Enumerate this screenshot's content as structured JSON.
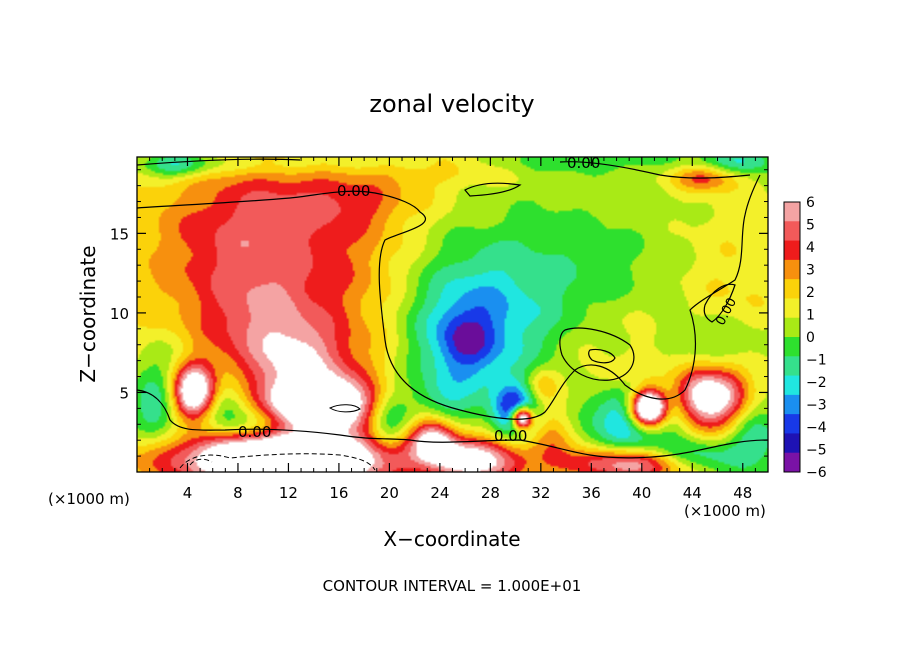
{
  "chart_data": {
    "type": "heatmap",
    "title": "zonal velocity",
    "xlabel": "X−coordinate",
    "ylabel": "Z−coordinate",
    "x_unit_left": "(×1000 m)",
    "x_unit_right": "(×1000 m)",
    "xlim": [
      0,
      50
    ],
    "ylim": [
      0,
      19.8
    ],
    "xticks": [
      4,
      8,
      12,
      16,
      20,
      24,
      28,
      32,
      36,
      40,
      44,
      48
    ],
    "yticks": [
      5,
      10,
      15
    ],
    "colorbar": {
      "levels": [
        6,
        5,
        4,
        3,
        2,
        1,
        0,
        -1,
        -2,
        -3,
        -4,
        -5,
        -6
      ],
      "labels": [
        "6",
        "5",
        "4",
        "3",
        "2",
        "1",
        "0",
        "−1",
        "−2",
        "−3",
        "−4",
        "−5",
        "−6"
      ],
      "colors": [
        "#f4a3a3",
        "#f25a5a",
        "#ee1c1c",
        "#f7900e",
        "#fbd20a",
        "#f3f02a",
        "#a9ea16",
        "#2ee02e",
        "#35e08c",
        "#20e6e0",
        "#1a8ff0",
        "#1839e8",
        "#1e12b4",
        "#7a12a6"
      ]
    },
    "contour_labels": [
      "0.00",
      "0.00",
      "0.00",
      "0.00",
      "0.00"
    ],
    "footer": "CONTOUR INTERVAL = 1.000E+01",
    "blobs": [
      {
        "x": 0,
        "z": 10,
        "sx": 30,
        "sz": 30,
        "v": 0.6
      },
      {
        "x": 10,
        "z": 16,
        "sx": 5,
        "sz": 3,
        "v": 2.2
      },
      {
        "x": 6,
        "z": 13,
        "sx": 5,
        "sz": 3.5,
        "v": 1.6
      },
      {
        "x": 12,
        "z": 12,
        "sx": 4,
        "sz": 5,
        "v": 1.3
      },
      {
        "x": 10,
        "z": 9,
        "sx": 3.5,
        "sz": 2.5,
        "v": 2.6
      },
      {
        "x": 14,
        "z": 6,
        "sx": 3.5,
        "sz": 2.2,
        "v": 2.6
      },
      {
        "x": 12.5,
        "z": 7,
        "sx": 2,
        "sz": 1.5,
        "v": 1.5
      },
      {
        "x": 18,
        "z": 13,
        "sx": 3,
        "sz": 5,
        "v": 1.2
      },
      {
        "x": 17,
        "z": 17,
        "sx": 4,
        "sz": 1,
        "v": 1.5
      },
      {
        "x": 4.5,
        "z": 5,
        "sx": 1.2,
        "sz": 1.2,
        "v": 9
      },
      {
        "x": 1.5,
        "z": 4,
        "sx": 1.5,
        "sz": 1.5,
        "v": -3.5
      },
      {
        "x": 2,
        "z": 7,
        "sx": 2,
        "sz": 1.3,
        "v": -1.5
      },
      {
        "x": 7,
        "z": 4.5,
        "sx": 1.5,
        "sz": 1.2,
        "v": -2.5
      },
      {
        "x": 14.5,
        "z": 4.2,
        "sx": 2.8,
        "sz": 1.1,
        "v": 9
      },
      {
        "x": 9,
        "z": 3,
        "sx": 3,
        "sz": 0.8,
        "v": -2.2
      },
      {
        "x": 12,
        "z": 0.8,
        "sx": 6,
        "sz": 1.1,
        "v": 12
      },
      {
        "x": 20,
        "z": 3,
        "sx": 1.2,
        "sz": 1.5,
        "v": -3
      },
      {
        "x": 23.5,
        "z": 2.2,
        "sx": 1.3,
        "sz": 1,
        "v": 7
      },
      {
        "x": 27,
        "z": 0.8,
        "sx": 2.5,
        "sz": 1,
        "v": 7
      },
      {
        "x": 24,
        "z": 3.8,
        "sx": 1.8,
        "sz": 1.5,
        "v": -2
      },
      {
        "x": 26,
        "z": 8.5,
        "sx": 3.5,
        "sz": 3.2,
        "v": -4
      },
      {
        "x": 26,
        "z": 8.2,
        "sx": 1.5,
        "sz": 1.3,
        "v": -2
      },
      {
        "x": 30,
        "z": 11,
        "sx": 5,
        "sz": 4,
        "v": -1.6
      },
      {
        "x": 36,
        "z": 13,
        "sx": 7,
        "sz": 4,
        "v": -1.2
      },
      {
        "x": 30,
        "z": 3.8,
        "sx": 1.2,
        "sz": 1.2,
        "v": -6
      },
      {
        "x": 30.5,
        "z": 3.4,
        "sx": 0.6,
        "sz": 0.5,
        "v": 12
      },
      {
        "x": 32,
        "z": 5.5,
        "sx": 1,
        "sz": 0.8,
        "v": 2.5
      },
      {
        "x": 33,
        "z": 2,
        "sx": 1.2,
        "sz": 1.5,
        "v": 2.5
      },
      {
        "x": 39,
        "z": 3.5,
        "sx": 2.5,
        "sz": 1.6,
        "v": -5
      },
      {
        "x": 40.5,
        "z": 4,
        "sx": 1,
        "sz": 0.8,
        "v": 13
      },
      {
        "x": 38,
        "z": 7,
        "sx": 2.5,
        "sz": 2,
        "v": 2
      },
      {
        "x": 38,
        "z": 7.8,
        "sx": 1,
        "sz": 0.8,
        "v": -2
      },
      {
        "x": 45,
        "z": 4.7,
        "sx": 2.5,
        "sz": 1.4,
        "v": 8.5
      },
      {
        "x": 42.5,
        "z": 4.5,
        "sx": 1.2,
        "sz": 1.5,
        "v": -3
      },
      {
        "x": 49,
        "z": 2.5,
        "sx": 1.5,
        "sz": 2,
        "v": -3
      },
      {
        "x": 44.5,
        "z": 1,
        "sx": 2.5,
        "sz": 0.8,
        "v": -3.5
      },
      {
        "x": 39,
        "z": 0.5,
        "sx": 3.5,
        "sz": 0.7,
        "v": 6
      },
      {
        "x": 46,
        "z": 8,
        "sx": 2.5,
        "sz": 1.2,
        "v": -1.8
      },
      {
        "x": 47,
        "z": 12,
        "sx": 3,
        "sz": 3,
        "v": 1.2
      },
      {
        "x": 3,
        "z": 19.3,
        "sx": 2,
        "sz": 0.6,
        "v": -3.5
      },
      {
        "x": 12,
        "z": 19.4,
        "sx": 8,
        "sz": 0.5,
        "v": -1.5
      },
      {
        "x": 24,
        "z": 19.2,
        "sx": 4,
        "sz": 0.8,
        "v": 1.5
      },
      {
        "x": 36,
        "z": 19.6,
        "sx": 8,
        "sz": 0.6,
        "v": -1.5
      },
      {
        "x": 45,
        "z": 18.5,
        "sx": 1.8,
        "sz": 0.6,
        "v": 3.5
      },
      {
        "x": 48,
        "z": 19.5,
        "sx": 2,
        "sz": 0.6,
        "v": -3
      }
    ]
  }
}
